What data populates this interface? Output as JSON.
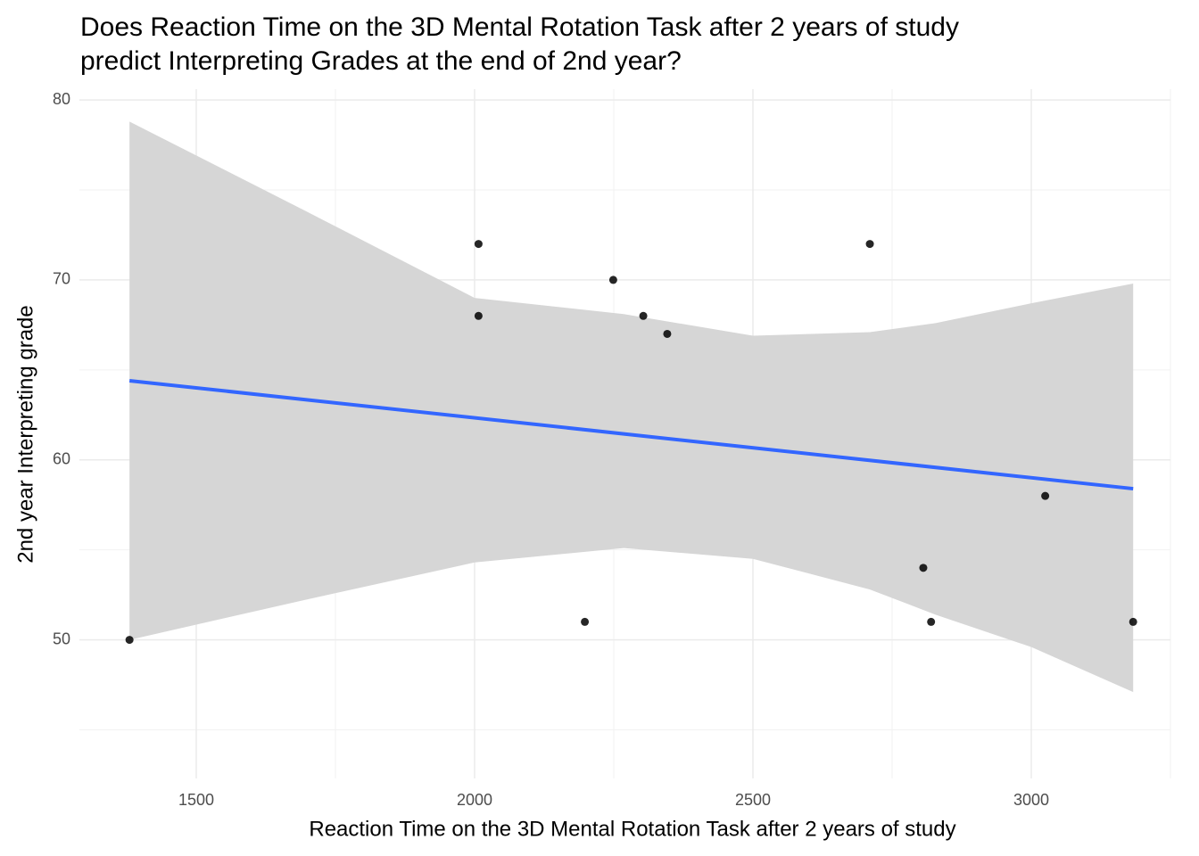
{
  "chart_data": {
    "type": "scatter",
    "title": [
      "Does Reaction Time on the 3D Mental Rotation Task after 2 years of study",
      "predict Interpreting Grades at the end of 2nd year?"
    ],
    "x_label": "Reaction Time on the 3D Mental Rotation Task after 2 years of study",
    "y_label": "2nd year Interpreting grade",
    "x": [
      1380,
      2007,
      2007,
      2198,
      2249,
      2303,
      2346,
      2710,
      2806,
      2820,
      3025,
      3183
    ],
    "values": [
      50,
      72,
      68,
      51,
      70,
      68,
      67,
      72,
      54,
      51,
      58,
      51
    ],
    "color": "#000000",
    "fit": {
      "x": [
        1380,
        3183
      ],
      "y": [
        64.4,
        58.4
      ],
      "color": "#3366ff"
    },
    "band": {
      "x": [
        1380,
        1692,
        2000,
        2268,
        2500,
        2710,
        2828,
        3000,
        3183
      ],
      "upper": [
        78.8,
        73.9,
        69.0,
        68.1,
        66.9,
        67.1,
        67.6,
        68.7,
        69.8
      ],
      "lower": [
        50.0,
        52.2,
        54.3,
        55.1,
        54.5,
        52.8,
        51.4,
        49.6,
        47.1
      ],
      "color": "#d6d6d6"
    },
    "xlim": [
      1290,
      3250
    ],
    "ylim": [
      42.3,
      80.6
    ],
    "xticks": [
      1500,
      2000,
      2500,
      3000
    ],
    "yticks": [
      50,
      60,
      70,
      80
    ],
    "minor_xticks": [
      1750,
      2250,
      2750,
      3250
    ],
    "minor_yticks": [
      45,
      55,
      65,
      75
    ],
    "grid": true
  }
}
